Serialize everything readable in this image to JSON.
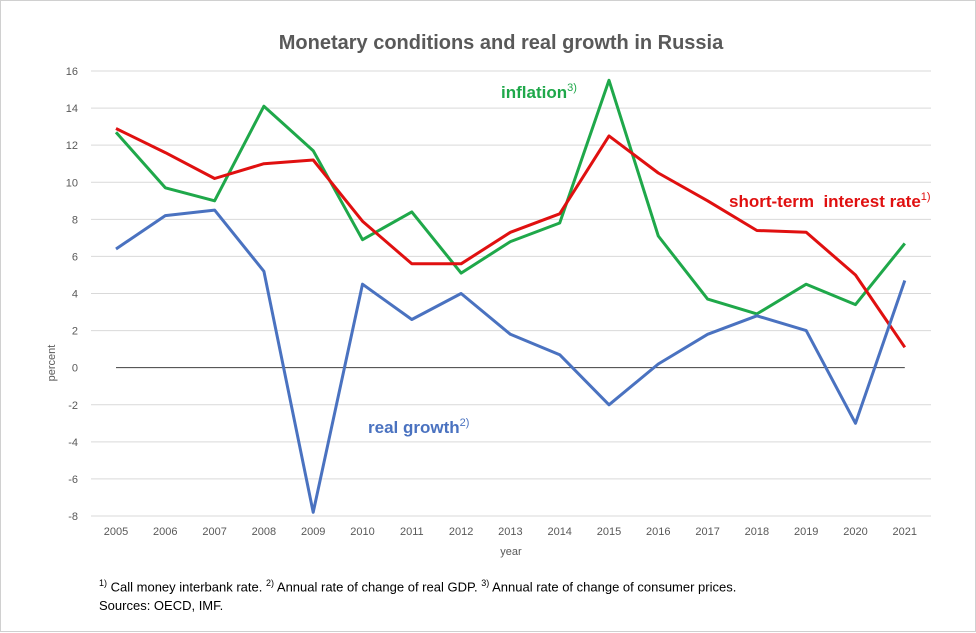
{
  "chart_data": {
    "type": "line",
    "title": "Monetary conditions and real growth in Russia",
    "xlabel": "year",
    "ylabel": "percent",
    "ylim": [
      -8,
      16
    ],
    "yticks": [
      -8,
      -6,
      -4,
      -2,
      0,
      2,
      4,
      6,
      8,
      10,
      12,
      14,
      16
    ],
    "grid": true,
    "legend": "inline labels",
    "x": [
      "2005",
      "2006",
      "2007",
      "2008",
      "2009",
      "2010",
      "2011",
      "2012",
      "2013",
      "2014",
      "2015",
      "2016",
      "2017",
      "2018",
      "2019",
      "2020",
      "2021"
    ],
    "series": [
      {
        "name": "inflation",
        "label_sup": "3)",
        "color": "#1fa84a",
        "values": [
          12.7,
          9.7,
          9.0,
          14.1,
          11.7,
          6.9,
          8.4,
          5.1,
          6.8,
          7.8,
          15.5,
          7.1,
          3.7,
          2.9,
          4.5,
          3.4,
          6.7
        ]
      },
      {
        "name": "short-term  interest rate",
        "label_sup": "1)",
        "color": "#e01010",
        "values": [
          12.9,
          11.6,
          10.2,
          11.0,
          11.2,
          7.9,
          5.6,
          5.6,
          7.3,
          8.3,
          12.5,
          10.5,
          9.0,
          7.4,
          7.3,
          5.0,
          1.1
        ]
      },
      {
        "name": "real growth",
        "label_sup": "2)",
        "color": "#4a72c0",
        "values": [
          6.4,
          8.2,
          8.5,
          5.2,
          -7.8,
          4.5,
          2.6,
          4.0,
          1.8,
          0.7,
          -2.0,
          0.2,
          1.8,
          2.8,
          2.0,
          -3.0,
          4.7
        ]
      }
    ]
  },
  "footnotes": {
    "line1_a_sup": "1)",
    "line1_a": " Call money interbank rate. ",
    "line1_b_sup": "2)",
    "line1_b": " Annual rate of change of real GDP. ",
    "line1_c_sup": "3)",
    "line1_c": " Annual rate of change of consumer prices.",
    "line2": "Sources: OECD, IMF."
  },
  "colors": {
    "grid": "#d9d9d9",
    "zero_line": "#404040",
    "axis_text": "#595959",
    "title": "#595959"
  }
}
